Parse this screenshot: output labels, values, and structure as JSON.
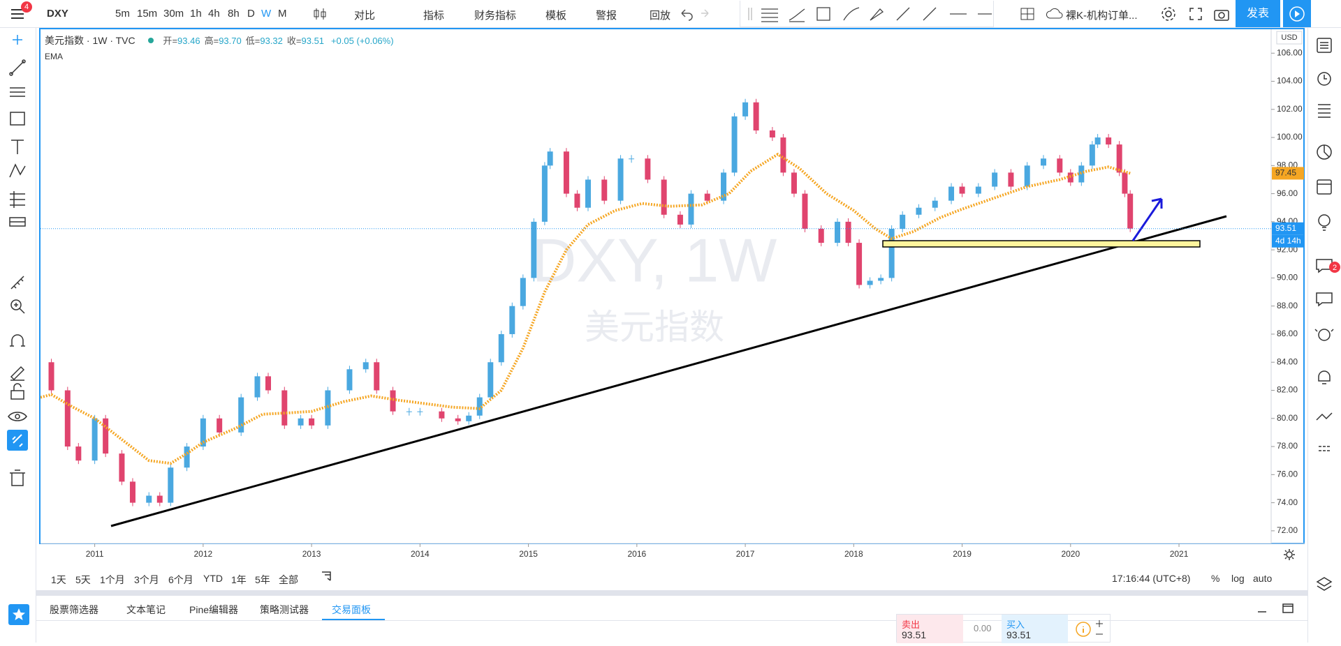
{
  "toolbar": {
    "symbol": "DXY",
    "badge": 4,
    "intervals": [
      "5m",
      "15m",
      "30m",
      "1h",
      "4h",
      "8h",
      "D",
      "W",
      "M"
    ],
    "buttons": [
      "对比",
      "指标",
      "财务指标",
      "模板",
      "警报",
      "回放"
    ],
    "layout": "裸K-机构订单...",
    "publish": "发表"
  },
  "legend": {
    "title": "美元指数 · 1W · TVC",
    "ohlc": [
      {
        "name": "开",
        "value": "93.46"
      },
      {
        "name": "高",
        "value": "93.70"
      },
      {
        "name": "低",
        "value": "93.32"
      },
      {
        "name": "收",
        "value": "93.51"
      }
    ],
    "change": "+0.05 (+0.06%)"
  },
  "watermark": {
    "symbol": "DXY, 1W",
    "name": "美元指数"
  },
  "currency": "USD",
  "countdown": "4d 14h",
  "chart_data": {
    "type": "candlestick",
    "x": [
      2010.5,
      2010.6,
      2010.75,
      2010.85,
      2011.0,
      2011.1,
      2011.25,
      2011.35,
      2011.5,
      2011.6,
      2011.7,
      2011.85,
      2012.0,
      2012.15,
      2012.35,
      2012.5,
      2012.6,
      2012.75,
      2012.9,
      2013.0,
      2013.15,
      2013.35,
      2013.5,
      2013.6,
      2013.75,
      2013.9,
      2014.0,
      2014.2,
      2014.35,
      2014.45,
      2014.55,
      2014.65,
      2014.75,
      2014.85,
      2014.95,
      2015.05,
      2015.15,
      2015.2,
      2015.35,
      2015.45,
      2015.55,
      2015.7,
      2015.85,
      2015.95,
      2016.1,
      2016.25,
      2016.4,
      2016.5,
      2016.65,
      2016.8,
      2016.9,
      2017.0,
      2017.1,
      2017.25,
      2017.35,
      2017.45,
      2017.55,
      2017.7,
      2017.85,
      2017.95,
      2018.05,
      2018.15,
      2018.25,
      2018.35,
      2018.45,
      2018.6,
      2018.75,
      2018.9,
      2019.0,
      2019.15,
      2019.3,
      2019.45,
      2019.6,
      2019.75,
      2019.9,
      2020.0,
      2020.1,
      2020.2,
      2020.25,
      2020.35,
      2020.45,
      2020.5,
      2020.55
    ],
    "series": [
      {
        "up_color": "#4aa8e0",
        "down_color": "#e0446e",
        "values": [
          84,
          82,
          78,
          77,
          80,
          77.5,
          75.5,
          74,
          74.5,
          74,
          76.5,
          78,
          80,
          79,
          81.5,
          83,
          82,
          79.5,
          80,
          79.5,
          82,
          83.5,
          84,
          82,
          80.5,
          80.5,
          80.5,
          80,
          79.8,
          80.2,
          81.5,
          84,
          86,
          88,
          90,
          94,
          98,
          99,
          96,
          95,
          97,
          95.5,
          98.5,
          98.5,
          97,
          94.5,
          93.8,
          96,
          95.5,
          97.5,
          101.5,
          102.5,
          100.5,
          100,
          97.5,
          96,
          93.5,
          92.5,
          94,
          92.5,
          89.5,
          89.8,
          90,
          93.5,
          94.5,
          95,
          95.5,
          96.5,
          96,
          96.5,
          97.5,
          96.5,
          98,
          98.5,
          97.5,
          96.8,
          98,
          99.5,
          100,
          99.5,
          97.5,
          96,
          93.51
        ]
      },
      {
        "name": "EMA",
        "color": "#f5a623",
        "x": [
          2010.5,
          2010.6,
          2010.8,
          2011.0,
          2011.25,
          2011.5,
          2011.7,
          2011.85,
          2012.0,
          2012.3,
          2012.55,
          2012.8,
          2013.0,
          2013.3,
          2013.55,
          2013.8,
          2014.0,
          2014.3,
          2014.55,
          2014.75,
          2014.95,
          2015.15,
          2015.35,
          2015.55,
          2015.8,
          2016.05,
          2016.3,
          2016.6,
          2016.85,
          2017.05,
          2017.3,
          2017.5,
          2017.75,
          2018.0,
          2018.2,
          2018.35,
          2018.55,
          2018.8,
          2019.0,
          2019.3,
          2019.6,
          2019.9,
          2020.15,
          2020.35,
          2020.55
        ],
        "values": [
          81.5,
          81.7,
          80.8,
          80,
          78.5,
          77,
          76.8,
          77.5,
          78.3,
          79.3,
          80.3,
          80.4,
          80.5,
          81.2,
          81.6,
          81.3,
          81.1,
          80.8,
          80.7,
          82,
          85,
          89,
          92,
          93.8,
          94.8,
          95.3,
          95.1,
          95.2,
          96,
          97.6,
          98.8,
          97.8,
          96,
          94.8,
          93.5,
          92.8,
          93.3,
          94.3,
          94.9,
          95.7,
          96.5,
          97,
          97.6,
          97.9,
          97.45
        ]
      }
    ],
    "last_price": 93.51,
    "xlim": [
      2010.5,
      2021.85
    ],
    "xticks": [
      2011,
      2012,
      2013,
      2014,
      2015,
      2016,
      2017,
      2018,
      2019,
      2020,
      2021
    ],
    "ylim": [
      71.1,
      107.7
    ],
    "yticks": [
      {
        "value": 72,
        "label": "72.00"
      },
      {
        "value": 74,
        "label": "74.00"
      },
      {
        "value": 76,
        "label": "76.00"
      },
      {
        "value": 78,
        "label": "78.00"
      },
      {
        "value": 80,
        "label": "80.00"
      },
      {
        "value": 82,
        "label": "82.00"
      },
      {
        "value": 84,
        "label": "84.00"
      },
      {
        "value": 86,
        "label": "86.00"
      },
      {
        "value": 88,
        "label": "88.00"
      },
      {
        "value": 90,
        "label": "90.00"
      },
      {
        "value": 92,
        "label": "92.00"
      },
      {
        "value": 94,
        "label": "94.00"
      },
      {
        "value": 96,
        "label": "96.00"
      },
      {
        "value": 98,
        "label": "98.00"
      },
      {
        "value": 100,
        "label": "100.00"
      },
      {
        "value": 102,
        "label": "102.00"
      },
      {
        "value": 104,
        "label": "104.00"
      },
      {
        "value": 106,
        "label": "106.00"
      }
    ]
  },
  "ranges": [
    "1天",
    "5天",
    "1个月",
    "3个月",
    "6个月",
    "YTD",
    "1年",
    "5年",
    "全部"
  ],
  "clock": "17:16:44 (UTC+8)",
  "scale_options": [
    "%",
    "log",
    "auto"
  ],
  "tabs": [
    "股票筛选器",
    "文本笔记",
    "Pine编辑器",
    "策略测试器",
    "交易面板"
  ],
  "trade": {
    "sell": "卖出",
    "sell_price": "93.51",
    "spread": "0.00",
    "buy": "买入",
    "buy_price": "93.51"
  },
  "alerts_badge": 2
}
